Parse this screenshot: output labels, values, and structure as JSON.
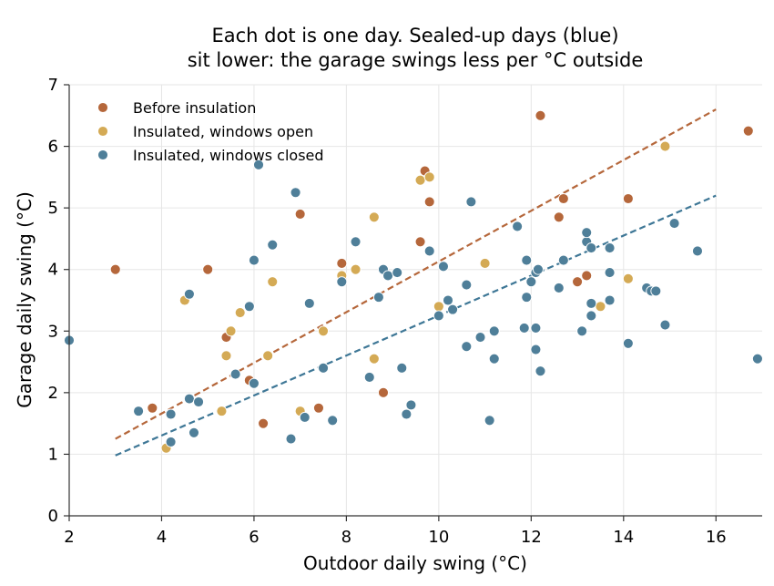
{
  "chart_data": {
    "type": "scatter",
    "title_lines": [
      "Each dot is one day. Sealed-up days (blue)",
      "sit lower: the garage swings less per °C outside"
    ],
    "xlabel": "Outdoor daily swing (°C)",
    "ylabel": "Garage daily swing (°C)",
    "xlim": [
      2,
      17
    ],
    "ylim": [
      0,
      7
    ],
    "x_ticks": [
      "2",
      "4",
      "6",
      "8",
      "10",
      "12",
      "14",
      "16"
    ],
    "y_ticks": [
      "0",
      "1",
      "2",
      "3",
      "4",
      "5",
      "6",
      "7"
    ],
    "grid": true,
    "legend_position": "top-left",
    "series": [
      {
        "name": "Before insulation",
        "color": "#b5673b",
        "points": [
          [
            3.0,
            4.0
          ],
          [
            3.8,
            1.75
          ],
          [
            5.0,
            4.0
          ],
          [
            5.4,
            2.9
          ],
          [
            5.9,
            2.2
          ],
          [
            6.2,
            1.5
          ],
          [
            7.0,
            4.9
          ],
          [
            7.4,
            1.75
          ],
          [
            7.9,
            4.1
          ],
          [
            8.8,
            2.0
          ],
          [
            9.6,
            4.45
          ],
          [
            9.7,
            5.6
          ],
          [
            9.8,
            5.1
          ],
          [
            12.2,
            6.5
          ],
          [
            12.6,
            4.85
          ],
          [
            12.7,
            5.15
          ],
          [
            13.0,
            3.8
          ],
          [
            13.2,
            3.9
          ],
          [
            14.1,
            5.15
          ],
          [
            16.7,
            6.25
          ]
        ],
        "trend": {
          "x": [
            3,
            16
          ],
          "y": [
            1.25,
            6.6
          ],
          "color": "#b5673b"
        }
      },
      {
        "name": "Insulated, windows open",
        "color": "#d4aa55",
        "points": [
          [
            4.1,
            1.1
          ],
          [
            4.5,
            3.5
          ],
          [
            5.3,
            1.7
          ],
          [
            5.4,
            2.6
          ],
          [
            5.5,
            3.0
          ],
          [
            5.7,
            3.3
          ],
          [
            6.3,
            2.6
          ],
          [
            6.4,
            3.8
          ],
          [
            7.0,
            1.7
          ],
          [
            7.5,
            3.0
          ],
          [
            7.9,
            3.9
          ],
          [
            8.2,
            4.0
          ],
          [
            8.6,
            2.55
          ],
          [
            8.6,
            4.85
          ],
          [
            9.6,
            5.45
          ],
          [
            9.8,
            5.5
          ],
          [
            10.0,
            3.4
          ],
          [
            11.0,
            4.1
          ],
          [
            13.5,
            3.4
          ],
          [
            14.1,
            3.85
          ],
          [
            14.9,
            6.0
          ]
        ],
        "trend": null
      },
      {
        "name": "Insulated, windows closed",
        "color": "#4f7f99",
        "points": [
          [
            2.0,
            2.85
          ],
          [
            3.5,
            1.7
          ],
          [
            4.2,
            1.65
          ],
          [
            4.2,
            1.2
          ],
          [
            4.6,
            1.9
          ],
          [
            4.6,
            3.6
          ],
          [
            4.7,
            1.35
          ],
          [
            4.8,
            1.85
          ],
          [
            5.6,
            2.3
          ],
          [
            5.9,
            3.4
          ],
          [
            6.0,
            4.15
          ],
          [
            6.0,
            2.15
          ],
          [
            6.1,
            5.7
          ],
          [
            6.4,
            4.4
          ],
          [
            6.8,
            1.25
          ],
          [
            6.9,
            5.25
          ],
          [
            7.1,
            1.6
          ],
          [
            7.2,
            3.45
          ],
          [
            7.5,
            2.4
          ],
          [
            7.7,
            1.55
          ],
          [
            7.9,
            3.8
          ],
          [
            8.2,
            4.45
          ],
          [
            8.5,
            2.25
          ],
          [
            8.7,
            3.55
          ],
          [
            8.8,
            4.0
          ],
          [
            8.9,
            3.9
          ],
          [
            9.1,
            3.95
          ],
          [
            9.2,
            2.4
          ],
          [
            9.3,
            1.65
          ],
          [
            9.4,
            1.8
          ],
          [
            9.8,
            4.3
          ],
          [
            10.0,
            3.25
          ],
          [
            10.1,
            4.05
          ],
          [
            10.2,
            3.5
          ],
          [
            10.3,
            3.35
          ],
          [
            10.6,
            3.75
          ],
          [
            10.6,
            2.75
          ],
          [
            10.7,
            5.1
          ],
          [
            10.9,
            2.9
          ],
          [
            11.1,
            1.55
          ],
          [
            11.2,
            3.0
          ],
          [
            11.2,
            2.55
          ],
          [
            11.7,
            4.7
          ],
          [
            11.85,
            3.05
          ],
          [
            11.9,
            3.55
          ],
          [
            11.9,
            4.15
          ],
          [
            12.0,
            3.8
          ],
          [
            12.1,
            3.05
          ],
          [
            12.1,
            2.7
          ],
          [
            12.1,
            3.95
          ],
          [
            12.15,
            4.0
          ],
          [
            12.2,
            2.35
          ],
          [
            12.6,
            3.7
          ],
          [
            12.7,
            4.15
          ],
          [
            13.1,
            3.0
          ],
          [
            13.2,
            4.45
          ],
          [
            13.2,
            4.6
          ],
          [
            13.3,
            4.35
          ],
          [
            13.3,
            3.45
          ],
          [
            13.3,
            3.25
          ],
          [
            13.7,
            4.35
          ],
          [
            13.7,
            3.95
          ],
          [
            13.7,
            3.5
          ],
          [
            14.1,
            2.8
          ],
          [
            14.5,
            3.7
          ],
          [
            14.6,
            3.65
          ],
          [
            14.7,
            3.65
          ],
          [
            14.9,
            3.1
          ],
          [
            15.1,
            4.75
          ],
          [
            15.6,
            4.3
          ],
          [
            16.9,
            2.55
          ]
        ],
        "trend": {
          "x": [
            3,
            16
          ],
          "y": [
            0.98,
            5.2
          ],
          "color": "#3e7796"
        }
      }
    ]
  }
}
